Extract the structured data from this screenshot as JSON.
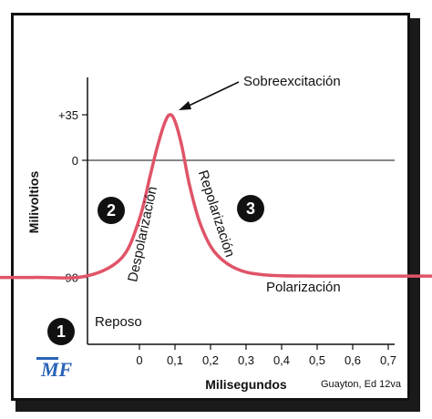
{
  "chart_data": {
    "type": "line",
    "title": "",
    "xlabel": "Milisegundos",
    "ylabel": "Milivoltios",
    "xlim": [
      -0.55,
      1.3
    ],
    "ylim": [
      -125,
      75
    ],
    "x_ticks": [
      "0",
      "0,1",
      "0,2",
      "0,3",
      "0,4",
      "0,5",
      "0,6",
      "0,7"
    ],
    "x_tick_values": [
      0,
      0.1,
      0.2,
      0.3,
      0.4,
      0.5,
      0.6,
      0.7
    ],
    "y_ticks": [
      "+35",
      "0",
      "−90"
    ],
    "y_tick_values": [
      35,
      0,
      -90
    ],
    "reference_line_y": 0,
    "series": [
      {
        "color": "#e05468",
        "points": [
          [
            -0.55,
            -90
          ],
          [
            -0.3,
            -90
          ],
          [
            -0.15,
            -89
          ],
          [
            -0.05,
            -75
          ],
          [
            0.0,
            -45
          ],
          [
            0.03,
            -12
          ],
          [
            0.05,
            10
          ],
          [
            0.07,
            28
          ],
          [
            0.085,
            35
          ],
          [
            0.1,
            30
          ],
          [
            0.12,
            10
          ],
          [
            0.14,
            -18
          ],
          [
            0.17,
            -48
          ],
          [
            0.21,
            -70
          ],
          [
            0.27,
            -83
          ],
          [
            0.35,
            -88
          ],
          [
            0.5,
            -89
          ],
          [
            0.8,
            -89
          ],
          [
            1.2,
            -89
          ]
        ]
      }
    ],
    "annotations": {
      "peak": "Sobreexcitación",
      "rising": "Despolarización",
      "falling": "Repolarización",
      "rest_right": "Polarización",
      "rest_left": "Reposo"
    },
    "phase_badges": [
      "1",
      "2",
      "3"
    ],
    "credit": "Guayton, Ed 12va",
    "logo_text": "MF",
    "colors": {
      "curve": "#e05468",
      "axis": "#111111",
      "badge": "#111111",
      "logo": "#2a63b8"
    }
  }
}
